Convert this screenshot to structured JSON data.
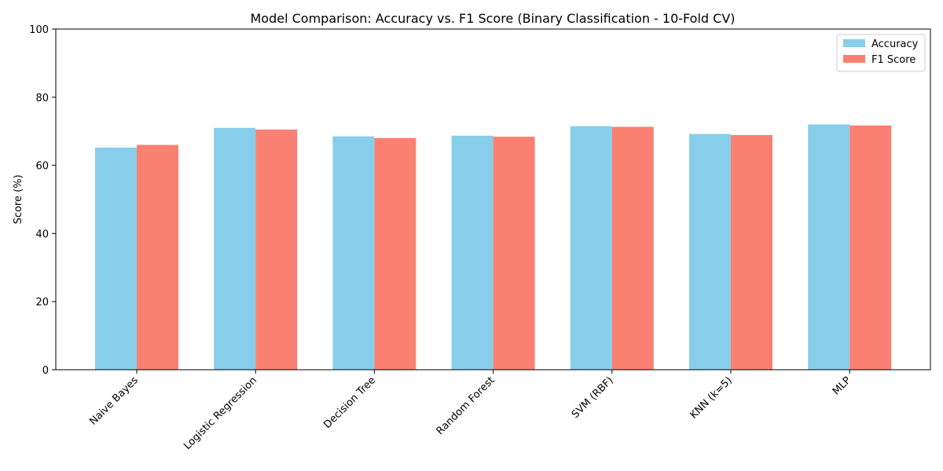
{
  "chart_data": {
    "type": "bar",
    "title": "Model Comparison: Accuracy vs. F1 Score (Binary Classification - 10-Fold CV)",
    "xlabel": "",
    "ylabel": "Score (%)",
    "ylim": [
      0,
      100
    ],
    "yticks": [
      0,
      20,
      40,
      60,
      80,
      100
    ],
    "grid": false,
    "legend_position": "top-right",
    "categories": [
      "Naive Bayes",
      "Logistic Regression",
      "Decision Tree",
      "Random Forest",
      "SVM (RBF)",
      "KNN (k=5)",
      "MLP"
    ],
    "series": [
      {
        "name": "Accuracy",
        "color": "#87ceeb",
        "values": [
          65.2,
          71.0,
          68.5,
          68.7,
          71.5,
          69.2,
          72.0
        ]
      },
      {
        "name": "F1 Score",
        "color": "#fa8072",
        "values": [
          66.0,
          70.5,
          68.0,
          68.4,
          71.3,
          68.9,
          71.7
        ]
      }
    ]
  }
}
